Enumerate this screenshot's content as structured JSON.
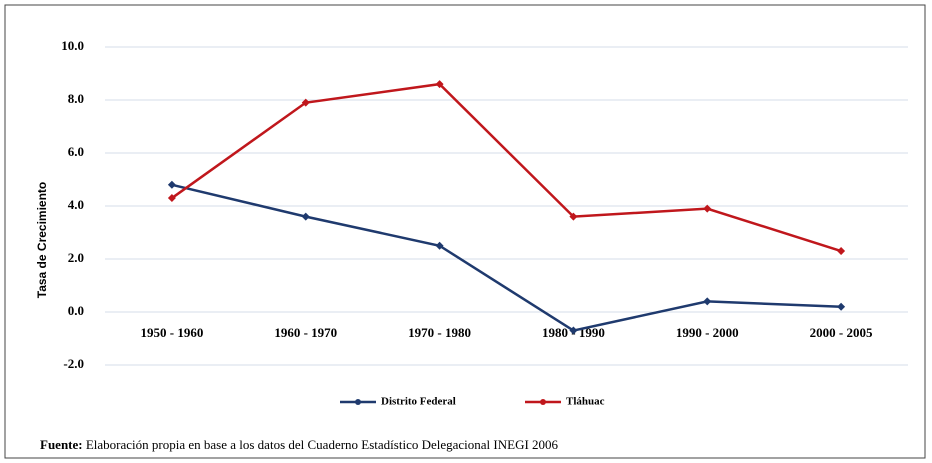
{
  "chart_data": {
    "type": "line",
    "y_label": "Tasa de Crecimiento",
    "categories": [
      "1950 - 1960",
      "1960 - 1970",
      "1970 - 1980",
      "1980 - 1990",
      "1990 - 2000",
      "2000 - 2005"
    ],
    "series": [
      {
        "name": "Distrito Federal",
        "color": "#1f3a6e",
        "values": [
          4.8,
          3.6,
          2.5,
          -0.7,
          0.4,
          0.2
        ]
      },
      {
        "name": "Tláhuac",
        "color": "#c0171c",
        "values": [
          4.3,
          7.9,
          8.6,
          3.6,
          3.9,
          2.3
        ]
      }
    ],
    "ylim": [
      -2,
      10
    ],
    "yticks": [
      {
        "value": -2,
        "label": "-2.0"
      },
      {
        "value": 0,
        "label": "0.0"
      },
      {
        "value": 2,
        "label": "2.0"
      },
      {
        "value": 4,
        "label": "4.0"
      },
      {
        "value": 6,
        "label": "6.0"
      },
      {
        "value": 8,
        "label": "8.0"
      },
      {
        "value": 10,
        "label": "10.0"
      }
    ],
    "grid": true,
    "legend": "bottom",
    "source_label": "Fuente:",
    "source": "Elaboración propia en base a los datos del Cuaderno Estadístico Delegacional INEGI 2006"
  }
}
